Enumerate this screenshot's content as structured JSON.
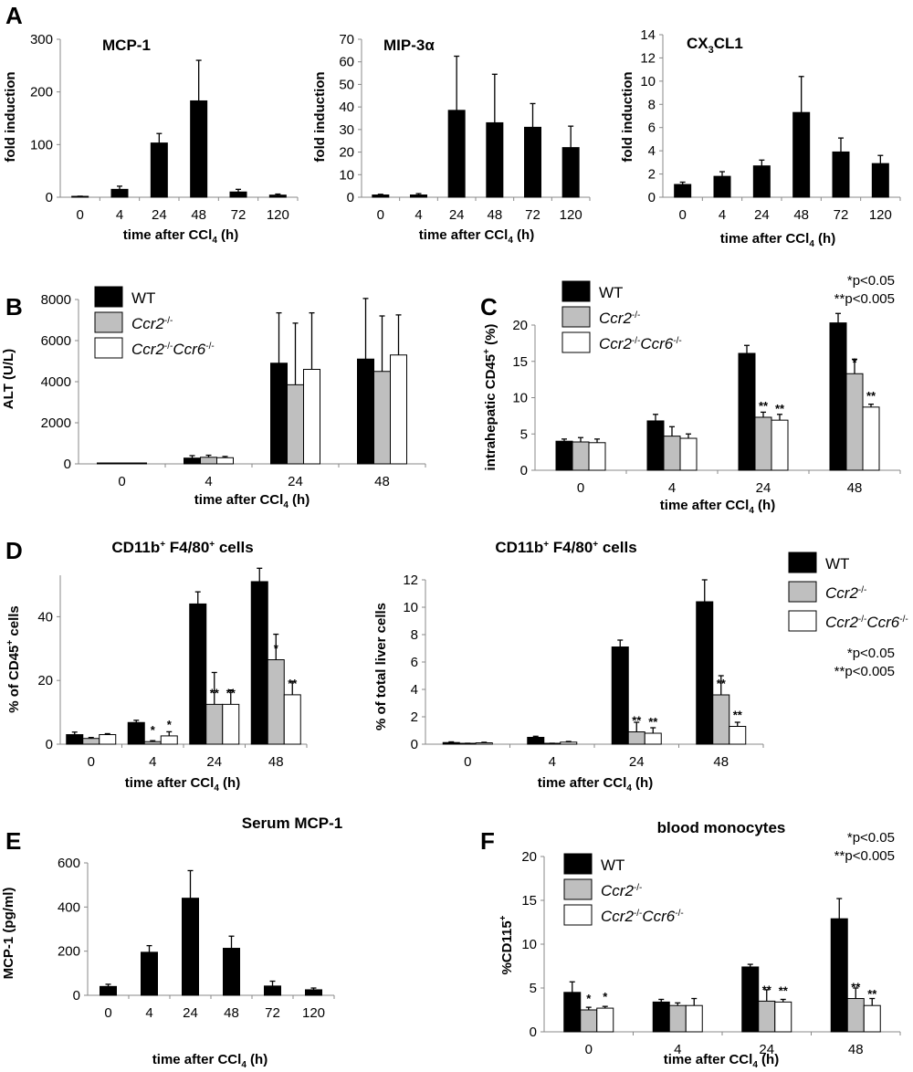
{
  "panel_letters": [
    "A",
    "B",
    "C",
    "D",
    "E",
    "F"
  ],
  "chart_data": [
    {
      "id": "A1",
      "panel": "A",
      "type": "bar",
      "title_html": "MCP-1",
      "ylabel_html": "fold induction",
      "xlabel_html": "time after CCl<tspan font-size=\"10\" dy=\"4\">4</tspan><tspan dy=\"-4\"> (h)</tspan>",
      "categories": [
        "0",
        "4",
        "24",
        "48",
        "72",
        "120"
      ],
      "ylim": [
        0,
        300
      ],
      "yticks": [
        0,
        100,
        200,
        300
      ],
      "series": [
        {
          "style": "black",
          "values": [
            1,
            15,
            103,
            183,
            10,
            4
          ],
          "errors": [
            1,
            6,
            18,
            77,
            5,
            2
          ]
        }
      ]
    },
    {
      "id": "A2",
      "panel": "A",
      "type": "bar",
      "title_html": "MIP-3α",
      "ylabel_html": "fold induction",
      "xlabel_html": "time after CCl<tspan font-size=\"10\" dy=\"4\">4</tspan><tspan dy=\"-4\"> (h)</tspan>",
      "categories": [
        "0",
        "4",
        "24",
        "48",
        "72",
        "120"
      ],
      "ylim": [
        0,
        70
      ],
      "yticks": [
        0,
        10,
        20,
        30,
        40,
        50,
        60,
        70
      ],
      "series": [
        {
          "style": "black",
          "values": [
            1,
            1,
            38.5,
            33,
            31,
            22
          ],
          "errors": [
            0.3,
            0.6,
            24,
            21.5,
            10.5,
            9.5
          ]
        }
      ]
    },
    {
      "id": "A3",
      "panel": "A",
      "type": "bar",
      "title_html": "CX<tspan font-size=\"11\" dy=\"5\">3</tspan><tspan dy=\"-5\">CL1</tspan>",
      "ylabel_html": "fold induction",
      "xlabel_html": "time after CCl<tspan font-size=\"10\" dy=\"4\">4</tspan><tspan dy=\"-4\"> (h)</tspan>",
      "categories": [
        "0",
        "4",
        "24",
        "48",
        "72",
        "120"
      ],
      "ylim": [
        0,
        14
      ],
      "yticks": [
        0,
        2,
        4,
        6,
        8,
        10,
        12,
        14
      ],
      "series": [
        {
          "style": "black",
          "values": [
            1.1,
            1.8,
            2.7,
            7.3,
            3.9,
            2.9
          ],
          "errors": [
            0.2,
            0.4,
            0.5,
            3.1,
            1.2,
            0.7
          ]
        }
      ]
    },
    {
      "id": "B",
      "panel": "B",
      "type": "bar",
      "title_html": "",
      "ylabel_html": "ALT (U/L)",
      "xlabel_html": "time after CCl<tspan font-size=\"10\" dy=\"4\">4</tspan><tspan dy=\"-4\"> (h)</tspan>",
      "categories": [
        "0",
        "4",
        "24",
        "48"
      ],
      "ylim": [
        0,
        8000
      ],
      "yticks": [
        0,
        2000,
        4000,
        6000,
        8000
      ],
      "series": [
        {
          "name_html": "WT",
          "style": "black",
          "values": [
            30,
            280,
            4900,
            5100
          ],
          "errors": [
            0,
            120,
            2450,
            2950
          ]
        },
        {
          "name_html": "<tspan font-style=\"italic\">Ccr2</tspan><tspan font-size=\"10\" dy=\"-6\">-/-</tspan>",
          "style": "gray",
          "values": [
            30,
            320,
            3850,
            4500
          ],
          "errors": [
            0,
            100,
            3000,
            2700
          ]
        },
        {
          "name_html": "<tspan font-style=\"italic\">Ccr2</tspan><tspan font-size=\"10\" dy=\"-6\">-/-</tspan><tspan font-style=\"italic\" dy=\"6\">Ccr6</tspan><tspan font-size=\"10\" dy=\"-6\">-/-</tspan>",
          "style": "white",
          "values": [
            30,
            300,
            4600,
            5300
          ],
          "errors": [
            0,
            60,
            2750,
            1950
          ]
        }
      ],
      "annotations": []
    },
    {
      "id": "C",
      "panel": "C",
      "type": "bar",
      "title_html": "",
      "ylabel_html": "intrahepatic CD45<tspan font-size=\"10\" dy=\"-6\">+</tspan><tspan dy=\"6\"> (%)</tspan>",
      "xlabel_html": "time after CCl<tspan font-size=\"10\" dy=\"4\">4</tspan><tspan dy=\"-4\"> (h)</tspan>",
      "categories": [
        "0",
        "4",
        "24",
        "48"
      ],
      "ylim": [
        0,
        20
      ],
      "yticks": [
        0,
        5,
        10,
        15,
        20
      ],
      "series": [
        {
          "name_html": "WT",
          "style": "black",
          "values": [
            4.0,
            6.8,
            16.1,
            20.3
          ],
          "errors": [
            0.3,
            0.9,
            1.1,
            1.3
          ],
          "marks": [
            "",
            "",
            "",
            ""
          ]
        },
        {
          "name_html": "<tspan font-style=\"italic\">Ccr2</tspan><tspan font-size=\"10\" dy=\"-6\">-/-</tspan>",
          "style": "gray",
          "values": [
            3.9,
            4.7,
            7.3,
            13.3
          ],
          "errors": [
            0.6,
            1.3,
            0.7,
            2.0
          ],
          "marks": [
            "",
            "",
            "**",
            "*"
          ]
        },
        {
          "name_html": "<tspan font-style=\"italic\">Ccr2</tspan><tspan font-size=\"10\" dy=\"-6\">-/-</tspan><tspan font-style=\"italic\" dy=\"6\">Ccr6</tspan><tspan font-size=\"10\" dy=\"-6\">-/-</tspan>",
          "style": "white",
          "values": [
            3.8,
            4.4,
            6.9,
            8.7
          ],
          "errors": [
            0.5,
            0.6,
            0.8,
            0.4
          ],
          "marks": [
            "",
            "",
            "**",
            "**"
          ]
        }
      ],
      "annotations": [
        "*p<0.05",
        "**p<0.005"
      ]
    },
    {
      "id": "D1",
      "panel": "D",
      "type": "bar",
      "title_html": "CD11b<tspan font-size=\"10\" dy=\"-6\">+</tspan><tspan dy=\"6\"> F4/80</tspan><tspan font-size=\"10\" dy=\"-6\">+</tspan><tspan dy=\"6\"> cells</tspan>",
      "ylabel_html": "% of CD45<tspan font-size=\"10\" dy=\"-6\">+</tspan><tspan dy=\"6\"> cells</tspan>",
      "xlabel_html": "time after CCl<tspan font-size=\"10\" dy=\"4\">4</tspan><tspan dy=\"-4\"> (h)</tspan>",
      "categories": [
        "0",
        "4",
        "24",
        "48"
      ],
      "ylim": [
        0,
        53
      ],
      "yticks": [
        0,
        20,
        40
      ],
      "series": [
        {
          "style": "black",
          "values": [
            3.0,
            6.8,
            44,
            51
          ],
          "errors": [
            0.8,
            0.7,
            3.8,
            4.2
          ],
          "marks": [
            "",
            "",
            "",
            ""
          ]
        },
        {
          "style": "gray",
          "values": [
            1.8,
            0.8,
            12.5,
            26.5
          ],
          "errors": [
            0.3,
            0.3,
            10,
            8
          ],
          "marks": [
            "",
            "*",
            "**",
            "*"
          ]
        },
        {
          "style": "white",
          "values": [
            3.0,
            2.6,
            12.5,
            15.5
          ],
          "errors": [
            0.3,
            1.3,
            4.5,
            4.2
          ],
          "marks": [
            "",
            "*",
            "**",
            "**"
          ]
        }
      ]
    },
    {
      "id": "D2",
      "panel": "D",
      "type": "bar",
      "title_html": "CD11b<tspan font-size=\"10\" dy=\"-6\">+</tspan><tspan dy=\"6\"> F4/80</tspan><tspan font-size=\"10\" dy=\"-6\">+</tspan><tspan dy=\"6\"> cells</tspan>",
      "ylabel_html": "% of total liver cells",
      "xlabel_html": "time after CCl<tspan font-size=\"10\" dy=\"4\">4</tspan><tspan dy=\"-4\"> (h)</tspan>",
      "categories": [
        "0",
        "4",
        "24",
        "48"
      ],
      "ylim": [
        0,
        12
      ],
      "yticks": [
        0,
        2,
        4,
        6,
        8,
        10,
        12
      ],
      "series": [
        {
          "name_html": "WT",
          "style": "black",
          "values": [
            0.12,
            0.5,
            7.1,
            10.4
          ],
          "errors": [
            0.05,
            0.08,
            0.5,
            1.6
          ],
          "marks": [
            "",
            "",
            "",
            ""
          ]
        },
        {
          "name_html": "<tspan font-style=\"italic\">Ccr2</tspan><tspan font-size=\"10\" dy=\"-6\">-/-</tspan>",
          "style": "gray",
          "values": [
            0.05,
            0.05,
            0.9,
            3.6
          ],
          "errors": [
            0.02,
            0.02,
            0.7,
            1.4
          ],
          "marks": [
            "",
            "",
            "**",
            "**"
          ]
        },
        {
          "name_html": "<tspan font-style=\"italic\">Ccr2</tspan><tspan font-size=\"10\" dy=\"-6\">-/-</tspan><tspan font-style=\"italic\" dy=\"6\">Ccr6</tspan><tspan font-size=\"10\" dy=\"-6\">-/-</tspan>",
          "style": "white",
          "values": [
            0.1,
            0.15,
            0.8,
            1.3
          ],
          "errors": [
            0.04,
            0.05,
            0.4,
            0.3
          ],
          "marks": [
            "",
            "",
            "**",
            "**"
          ]
        }
      ],
      "annotations": [
        "*p<0.05",
        "**p<0.005"
      ]
    },
    {
      "id": "E",
      "panel": "E",
      "type": "bar",
      "title_html": "Serum  MCP-1",
      "ylabel_html": "MCP-1 (pg/ml)",
      "xlabel_html": "time after CCl<tspan font-size=\"10\" dy=\"4\">4</tspan><tspan dy=\"-4\"> (h)</tspan>",
      "categories": [
        "0",
        "4",
        "24",
        "48",
        "72",
        "120"
      ],
      "ylim": [
        0,
        600
      ],
      "yticks": [
        0,
        200,
        400,
        600
      ],
      "series": [
        {
          "style": "black",
          "values": [
            40,
            195,
            440,
            213,
            42,
            25
          ],
          "errors": [
            10,
            30,
            125,
            55,
            22,
            8
          ]
        }
      ]
    },
    {
      "id": "F",
      "panel": "F",
      "type": "bar",
      "title_html": "blood monocytes",
      "ylabel_html": "%CD115<tspan font-size=\"10\" dy=\"-6\">+</tspan>",
      "xlabel_html": "time after CCl<tspan font-size=\"10\" dy=\"4\">4</tspan><tspan dy=\"-4\"> (h)</tspan>",
      "categories": [
        "0",
        "4",
        "24",
        "48"
      ],
      "ylim": [
        0,
        20
      ],
      "yticks": [
        0,
        5,
        10,
        15,
        20
      ],
      "series": [
        {
          "name_html": "WT",
          "style": "black",
          "values": [
            4.5,
            3.4,
            7.4,
            12.9
          ],
          "errors": [
            1.2,
            0.3,
            0.3,
            2.3
          ],
          "marks": [
            "",
            "",
            "",
            ""
          ]
        },
        {
          "name_html": "<tspan font-style=\"italic\">Ccr2</tspan><tspan font-size=\"10\" dy=\"-6\">-/-</tspan>",
          "style": "gray",
          "values": [
            2.5,
            3.0,
            3.5,
            3.8
          ],
          "errors": [
            0.3,
            0.3,
            1.3,
            1.2
          ],
          "marks": [
            "*",
            "",
            "**",
            "**"
          ]
        },
        {
          "name_html": "<tspan font-style=\"italic\">Ccr2</tspan><tspan font-size=\"10\" dy=\"-6\">-/-</tspan><tspan font-style=\"italic\" dy=\"6\">Ccr6</tspan><tspan font-size=\"10\" dy=\"-6\">-/-</tspan>",
          "style": "white",
          "values": [
            2.7,
            3.0,
            3.4,
            3.0
          ],
          "errors": [
            0.2,
            0.8,
            0.3,
            0.8
          ],
          "marks": [
            "*",
            "",
            "**",
            "**"
          ]
        }
      ],
      "annotations": [
        "*p<0.05",
        "**p<0.005"
      ]
    }
  ]
}
